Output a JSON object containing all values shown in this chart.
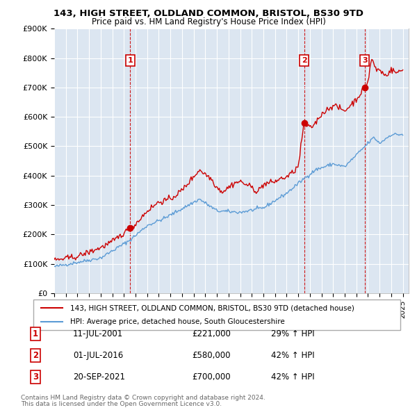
{
  "title": "143, HIGH STREET, OLDLAND COMMON, BRISTOL, BS30 9TD",
  "subtitle": "Price paid vs. HM Land Registry's House Price Index (HPI)",
  "legend_line1": "143, HIGH STREET, OLDLAND COMMON, BRISTOL, BS30 9TD (detached house)",
  "legend_line2": "HPI: Average price, detached house, South Gloucestershire",
  "footer_line1": "Contains HM Land Registry data © Crown copyright and database right 2024.",
  "footer_line2": "This data is licensed under the Open Government Licence v3.0.",
  "sale_color": "#cc0000",
  "hpi_color": "#5b9bd5",
  "bg_color": "#dce6f1",
  "transactions": [
    {
      "num": 1,
      "date": "11-JUL-2001",
      "price": "£221,000",
      "pct": "29% ↑ HPI",
      "year": 2001.53,
      "value": 221000
    },
    {
      "num": 2,
      "date": "01-JUL-2016",
      "price": "£580,000",
      "pct": "42% ↑ HPI",
      "year": 2016.5,
      "value": 580000
    },
    {
      "num": 3,
      "date": "20-SEP-2021",
      "price": "£700,000",
      "pct": "42% ↑ HPI",
      "year": 2021.72,
      "value": 700000
    }
  ],
  "xmin": 1995,
  "xmax": 2025.5,
  "ymin": 0,
  "ymax": 900000,
  "yticks": [
    0,
    100000,
    200000,
    300000,
    400000,
    500000,
    600000,
    700000,
    800000,
    900000
  ],
  "ytick_labels": [
    "£0",
    "£100K",
    "£200K",
    "£300K",
    "£400K",
    "£500K",
    "£600K",
    "£700K",
    "£800K",
    "£900K"
  ]
}
